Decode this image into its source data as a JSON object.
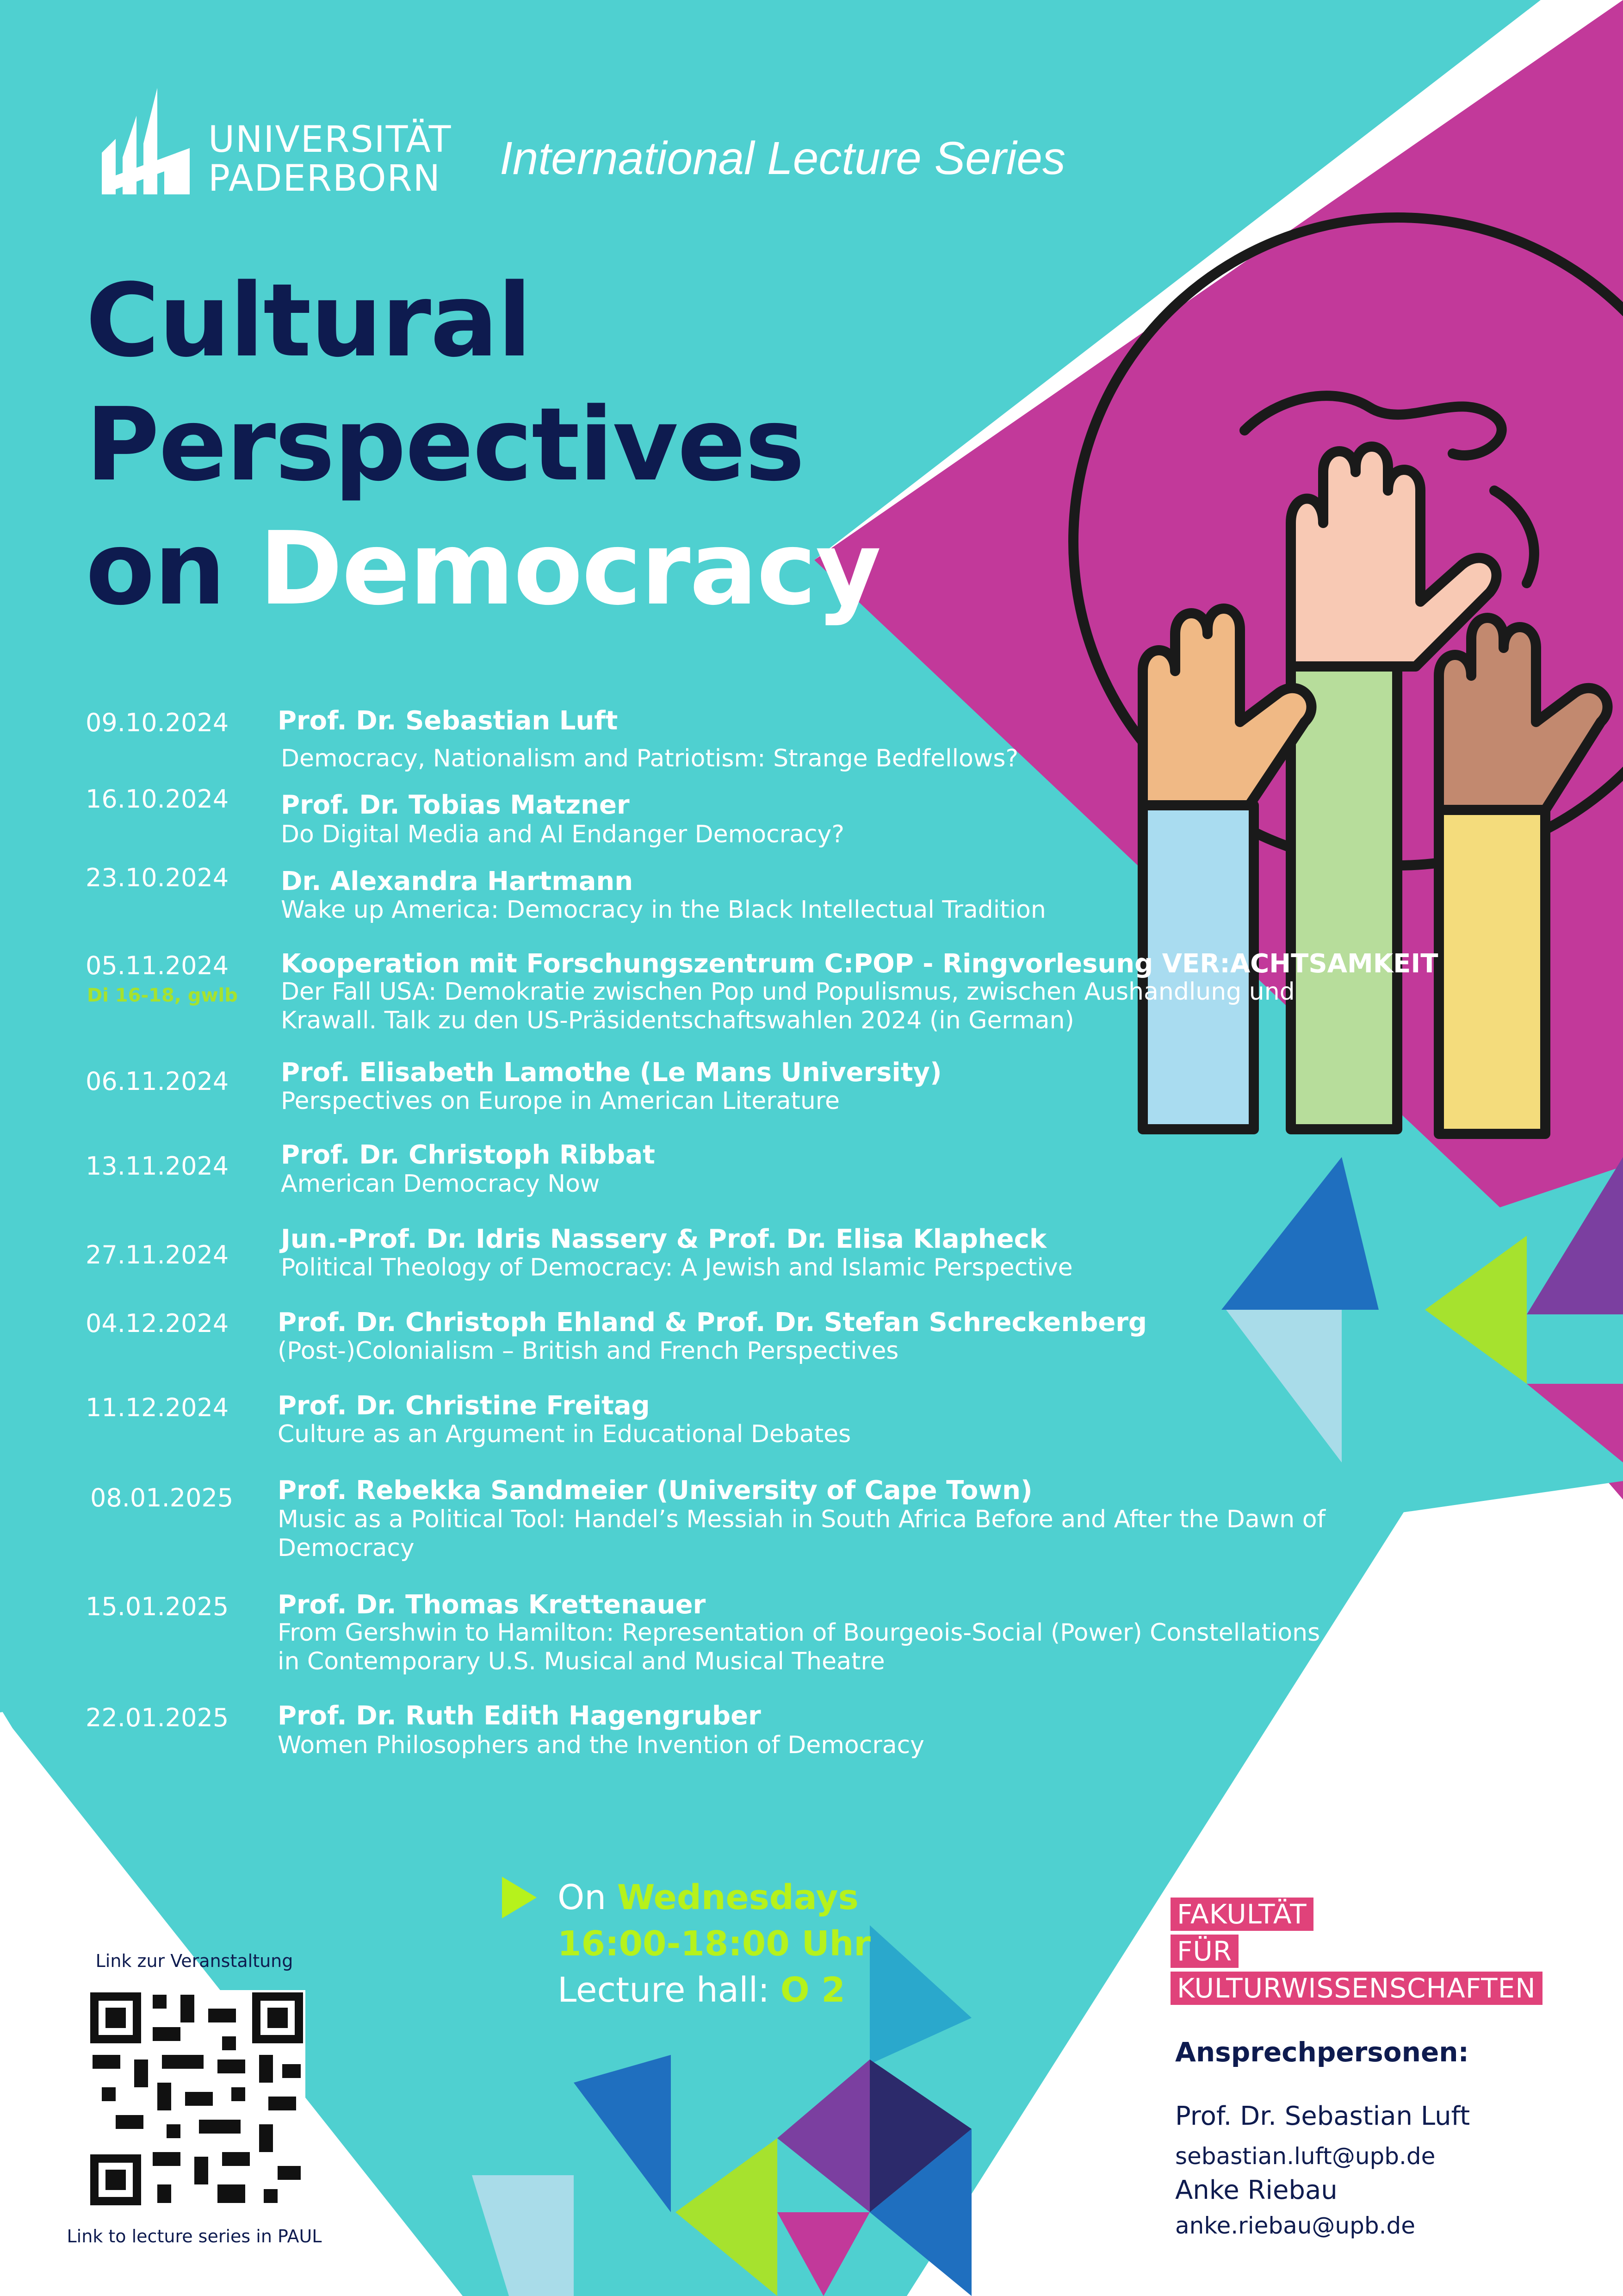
{
  "header": {
    "university_line1": "UNIVERSITÄT",
    "university_line2": "PADERBORN",
    "series": "International Lecture Series"
  },
  "title": {
    "line1": "Cultural",
    "line2": "Perspectives",
    "line3_prefix": "on",
    "line3_highlight": "Democracy"
  },
  "lectures": [
    {
      "date": "09.10.2024",
      "speaker": "Prof. Dr. Sebastian Luft",
      "talk": "Democracy, Nationalism and Patriotism: Strange Bedfellows?"
    },
    {
      "date": "16.10.2024",
      "speaker": "Prof. Dr. Tobias Matzner",
      "talk": "Do Digital Media and AI Endanger Democracy?"
    },
    {
      "date": "23.10.2024",
      "speaker": "Dr. Alexandra Hartmann",
      "talk": "Wake up America: Democracy in the Black Intellectual Tradition"
    },
    {
      "date": "05.11.2024",
      "note": "Di 16-18, gwlb",
      "speaker": "Kooperation mit Forschungszentrum C:POP - Ringvorlesung VER:ACHTSAMKEIT",
      "talk": "Der Fall USA: Demokratie zwischen Pop und Populismus, zwischen Aushandlung und Krawall. Talk zu den US-Präsidentschaftswahlen 2024 (in German)"
    },
    {
      "date": "06.11.2024",
      "speaker": "Prof. Elisabeth Lamothe (Le Mans University)",
      "talk": "Perspectives on Europe in American Literature"
    },
    {
      "date": "13.11.2024",
      "speaker": "Prof. Dr. Christoph Ribbat",
      "talk": "American Democracy Now"
    },
    {
      "date": "27.11.2024",
      "speaker": "Jun.-Prof. Dr. Idris Nassery & Prof. Dr. Elisa Klapheck",
      "talk": "Political Theology of Democracy: A Jewish and Islamic Perspective"
    },
    {
      "date": "04.12.2024",
      "speaker": "Prof. Dr. Christoph Ehland & Prof. Dr. Stefan Schreckenberg",
      "talk": "(Post-)Colonialism – British and French Perspectives"
    },
    {
      "date": "11.12.2024",
      "speaker": "Prof. Dr. Christine Freitag",
      "talk": "Culture as an Argument in Educational Debates"
    },
    {
      "date": "08.01.2025",
      "speaker": "Prof. Rebekka Sandmeier (University of Cape Town)",
      "talk": "Music as a Political Tool: Handel’s Messiah in South Africa Before and After the Dawn of Democracy"
    },
    {
      "date": "15.01.2025",
      "speaker": "Prof. Dr. Thomas Krettenauer",
      "talk": "From Gershwin to Hamilton: Representation of Bourgeois-Social (Power) Constellations in Contemporary U.S. Musical and Musical Theatre"
    },
    {
      "date": "22.01.2025",
      "speaker": "Prof. Dr. Ruth Edith Hagengruber",
      "talk": "Women Philosophers and the Invention of Democracy"
    }
  ],
  "schedule": {
    "on": "On",
    "day": "Wednesdays",
    "time": "16:00-18:00 Uhr",
    "hall_label": "Lecture hall:",
    "hall": "O 2"
  },
  "qr": {
    "caption_top": "Link zur Veranstaltung",
    "caption_bottom": "Link to lecture series in PAUL"
  },
  "faculty": {
    "line1": "FAKULTÄT",
    "line2": "FÜR",
    "line3": "KULTURWISSENSCHAFTEN"
  },
  "contacts": {
    "heading": "Ansprechpersonen:",
    "person1": "Prof. Dr. Sebastian Luft",
    "email1": "sebastian.luft@upb.de",
    "person2": "Anke Riebau",
    "email2": "anke.riebau@upb.de"
  },
  "colors": {
    "teal": "#4fd0d0",
    "magenta": "#c2399a",
    "navy": "#0e1b4f",
    "lime": "#b6f21c",
    "pink": "#e0427a"
  }
}
